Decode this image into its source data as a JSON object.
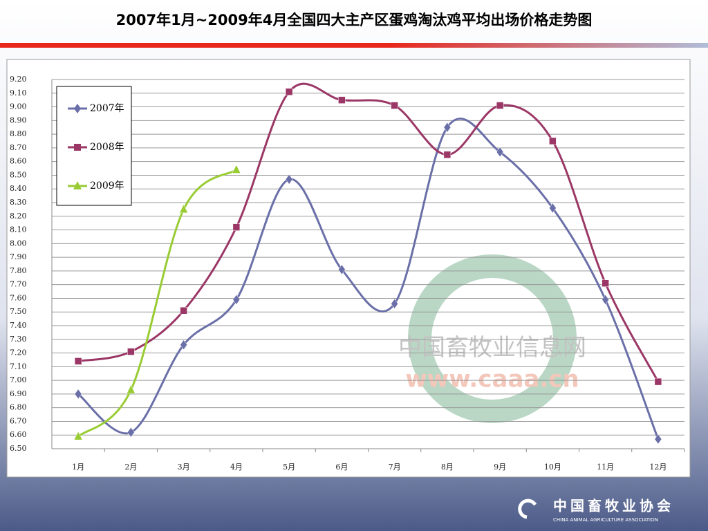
{
  "chart_data": {
    "type": "line",
    "title": "2007年1月~2009年4月全国四大主产区蛋鸡淘汰鸡平均出场价格走势图",
    "categories": [
      "1月",
      "2月",
      "3月",
      "4月",
      "5月",
      "6月",
      "7月",
      "8月",
      "9月",
      "10月",
      "11月",
      "12月"
    ],
    "series": [
      {
        "name": "2007年",
        "color": "#6a6fa8",
        "marker": "diamond",
        "values": [
          6.9,
          6.62,
          7.26,
          7.59,
          8.47,
          7.81,
          7.56,
          8.85,
          8.67,
          8.26,
          7.59,
          6.57
        ]
      },
      {
        "name": "2008年",
        "color": "#9b3766",
        "marker": "square",
        "values": [
          7.14,
          7.21,
          7.51,
          8.12,
          9.11,
          9.05,
          9.01,
          8.65,
          9.01,
          8.75,
          7.71,
          6.99
        ]
      },
      {
        "name": "2009年",
        "color": "#99cc33",
        "marker": "triangle",
        "values": [
          6.59,
          6.93,
          8.25,
          8.54,
          null,
          null,
          null,
          null,
          null,
          null,
          null,
          null
        ]
      }
    ],
    "ylim": [
      6.5,
      9.2
    ],
    "yticks": [
      {
        "value": 6.5,
        "label": "6.50"
      },
      {
        "value": 6.6,
        "label": "6.60"
      },
      {
        "value": 6.7,
        "label": "6.70"
      },
      {
        "value": 6.8,
        "label": "6.80"
      },
      {
        "value": 6.9,
        "label": "6.90"
      },
      {
        "value": 7.0,
        "label": "7.00"
      },
      {
        "value": 7.1,
        "label": "7.10"
      },
      {
        "value": 7.2,
        "label": "7.20"
      },
      {
        "value": 7.3,
        "label": "7.30"
      },
      {
        "value": 7.4,
        "label": "7.40"
      },
      {
        "value": 7.5,
        "label": "7.50"
      },
      {
        "value": 7.6,
        "label": "7.60"
      },
      {
        "value": 7.7,
        "label": "7.70"
      },
      {
        "value": 7.8,
        "label": "7.80"
      },
      {
        "value": 7.9,
        "label": "7.90"
      },
      {
        "value": 8.0,
        "label": "8.00"
      },
      {
        "value": 8.1,
        "label": "8.10"
      },
      {
        "value": 8.2,
        "label": "8.20"
      },
      {
        "value": 8.3,
        "label": "8.30"
      },
      {
        "value": 8.4,
        "label": "8.40"
      },
      {
        "value": 8.5,
        "label": "8.50"
      },
      {
        "value": 8.6,
        "label": "8.60"
      },
      {
        "value": 8.7,
        "label": "8.70"
      },
      {
        "value": 8.8,
        "label": "8.80"
      },
      {
        "value": 8.9,
        "label": "8.90"
      },
      {
        "value": 9.0,
        "label": "9.00"
      },
      {
        "value": 9.1,
        "label": "9.10"
      },
      {
        "value": 9.2,
        "label": "9.20"
      }
    ],
    "grid": true,
    "smooth": true,
    "legend": "upper left"
  },
  "watermark": {
    "name": "中国畜牧业信息网",
    "url": "www.caaa.cn"
  },
  "footer": {
    "org": "中国畜牧业协会",
    "org_en": "CHINA ANIMAL AGRICULTURE ASSOCIATION"
  }
}
